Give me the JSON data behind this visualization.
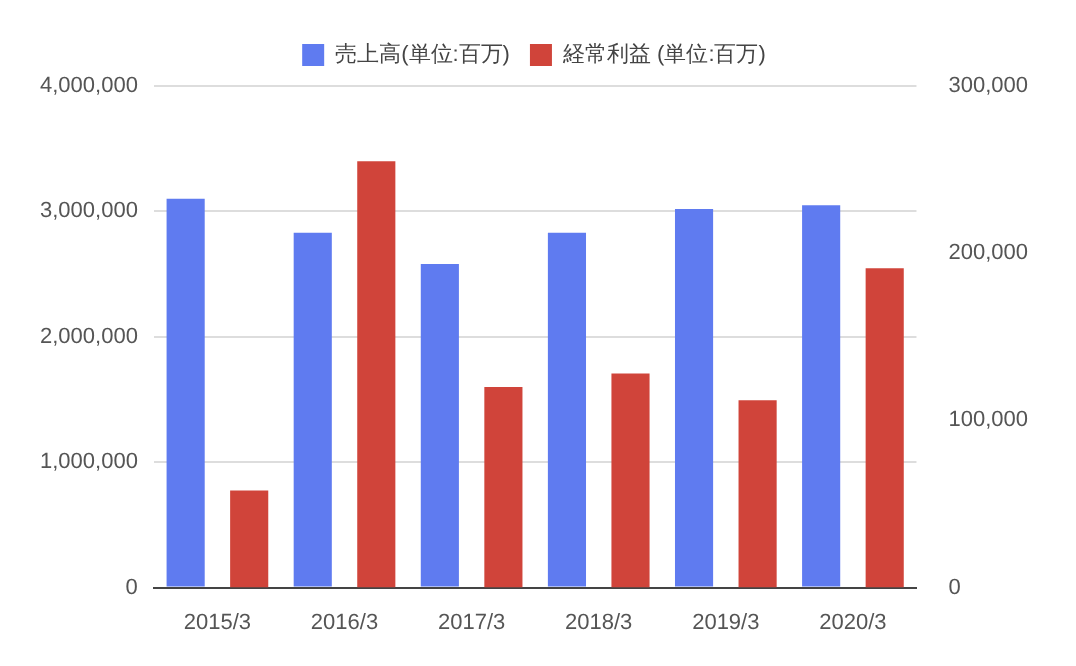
{
  "chart_data": {
    "type": "bar",
    "categories": [
      "2015/3",
      "2016/3",
      "2017/3",
      "2018/3",
      "2019/3",
      "2020/3"
    ],
    "series": [
      {
        "name": "売上高(単位:百万)",
        "color": "#5f7bf0",
        "values": [
          3100000,
          2830000,
          2580000,
          2830000,
          3020000,
          3050000
        ]
      },
      {
        "name": "経常利益 (単位:百万)",
        "color": "#d0443a",
        "axis": "y2",
        "values": [
          58000,
          255000,
          120000,
          128000,
          112000,
          191000
        ]
      }
    ],
    "ylim": [
      0,
      4000000
    ],
    "yticks": [
      0,
      {
        "value": 1000000,
        "label": "1,000,000"
      },
      {
        "value": 2000000,
        "label": "2,000,000"
      },
      {
        "value": 3000000,
        "label": "3,000,000"
      },
      {
        "value": 4000000,
        "label": "4,000,000"
      }
    ],
    "y2lim": [
      0,
      300000
    ],
    "y2ticks": [
      0,
      {
        "value": 100000,
        "label": "100,000"
      },
      {
        "value": 200000,
        "label": "200,000"
      },
      {
        "value": 300000,
        "label": "300,000"
      }
    ],
    "grid": "y",
    "legend": "top"
  }
}
